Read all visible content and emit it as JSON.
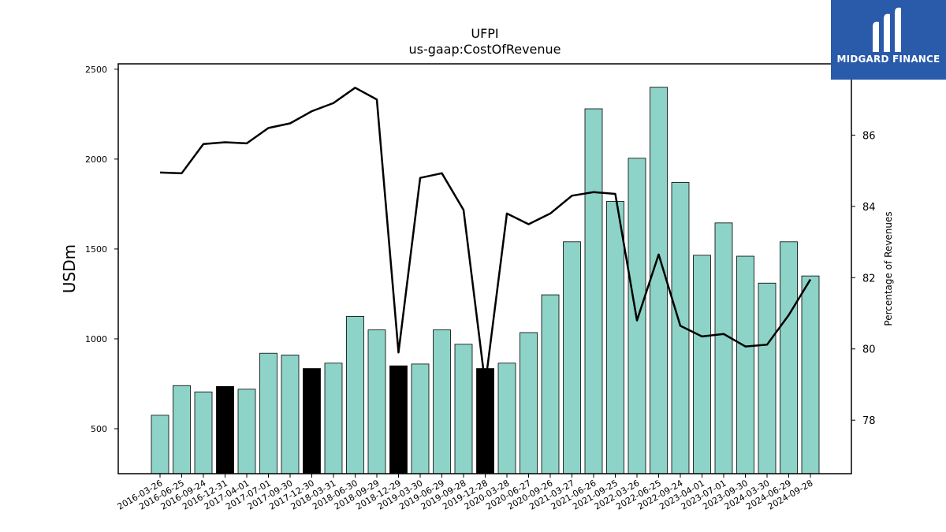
{
  "chart_data": {
    "type": "bar",
    "title": "UFPI",
    "subtitle": "us-gaap:CostOfRevenue",
    "ylabel": "USDm",
    "y2label": "Percentage of Revenues",
    "ylim": [
      250,
      2530
    ],
    "y2lim": [
      76.5,
      88.0
    ],
    "yticks": [
      500,
      1000,
      1500,
      2000,
      2500
    ],
    "y2ticks": [
      78,
      80,
      82,
      84,
      86
    ],
    "categories": [
      "2016-03-26",
      "2016-06-25",
      "2016-09-24",
      "2016-12-31",
      "2017-04-01",
      "2017-07-01",
      "2017-09-30",
      "2017-12-30",
      "2018-03-31",
      "2018-06-30",
      "2018-09-29",
      "2018-12-29",
      "2019-03-30",
      "2019-06-29",
      "2019-09-28",
      "2019-12-28",
      "2020-03-28",
      "2020-06-27",
      "2020-09-26",
      "2021-03-27",
      "2021-06-26",
      "2021-09-25",
      "2022-03-26",
      "2022-06-25",
      "2022-09-24",
      "2023-04-01",
      "2023-07-01",
      "2023-09-30",
      "2024-03-30",
      "2024-06-29",
      "2024-09-28"
    ],
    "series": [
      {
        "type": "bar",
        "values": [
          575,
          740,
          705,
          735,
          720,
          920,
          910,
          835,
          865,
          1125,
          1050,
          850,
          860,
          1050,
          970,
          835,
          865,
          1035,
          1245,
          1540,
          2280,
          1765,
          2005,
          2400,
          1870,
          1465,
          1645,
          1460,
          1310,
          1540,
          1350
        ],
        "highlight": [
          false,
          false,
          false,
          true,
          false,
          false,
          false,
          true,
          false,
          false,
          false,
          true,
          false,
          false,
          false,
          true,
          false,
          false,
          false,
          false,
          false,
          false,
          false,
          false,
          false,
          false,
          false,
          false,
          false,
          false,
          false
        ]
      },
      {
        "type": "line",
        "axis": "right",
        "values": [
          84.95,
          84.93,
          85.75,
          85.8,
          85.77,
          86.2,
          86.33,
          86.67,
          86.9,
          87.33,
          87.0,
          79.9,
          84.8,
          84.93,
          83.9,
          79.0,
          83.8,
          83.5,
          83.8,
          84.3,
          84.4,
          84.35,
          80.8,
          82.65,
          80.65,
          80.35,
          80.42,
          80.07,
          80.12,
          80.95,
          81.95
        ]
      }
    ],
    "colors": {
      "bar": "#8dd3c7",
      "highlight": "#000000",
      "line": "#000000"
    }
  },
  "logo": {
    "text": "MIDGARD FINANCE",
    "bg": "#2a5aaa"
  }
}
